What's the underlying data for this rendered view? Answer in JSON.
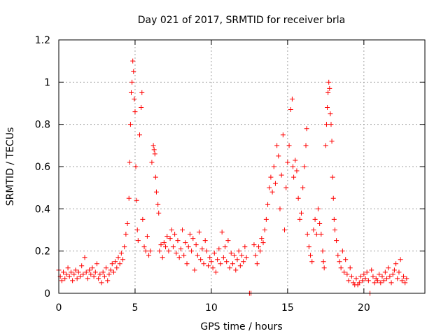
{
  "chart_data": {
    "type": "scatter",
    "title": "Day 021 of 2017, SRMTID for receiver brla",
    "xlabel": "GPS time / hours",
    "ylabel": "SRMTID / TECUs",
    "xlim": [
      0,
      24
    ],
    "ylim": [
      0,
      1.2
    ],
    "xticks": [
      0,
      5,
      10,
      15,
      20
    ],
    "yticks": [
      0,
      0.2,
      0.4,
      0.6,
      0.8,
      1,
      1.2
    ],
    "ytick_labels": [
      "0",
      "0.2",
      "0.4",
      "0.6",
      "0.8",
      "1",
      "1.2"
    ],
    "grid": true,
    "marker": "+",
    "series": [
      {
        "name": "SRMTID",
        "color": "#ff0000",
        "points": [
          [
            0.0,
            0.11
          ],
          [
            0.1,
            0.08
          ],
          [
            0.2,
            0.06
          ],
          [
            0.3,
            0.1
          ],
          [
            0.4,
            0.07
          ],
          [
            0.5,
            0.09
          ],
          [
            0.6,
            0.12
          ],
          [
            0.7,
            0.08
          ],
          [
            0.8,
            0.1
          ],
          [
            0.9,
            0.06
          ],
          [
            1.0,
            0.09
          ],
          [
            1.1,
            0.11
          ],
          [
            1.2,
            0.07
          ],
          [
            1.3,
            0.1
          ],
          [
            1.4,
            0.08
          ],
          [
            1.5,
            0.13
          ],
          [
            1.6,
            0.09
          ],
          [
            1.7,
            0.17
          ],
          [
            1.8,
            0.1
          ],
          [
            1.9,
            0.07
          ],
          [
            2.0,
            0.11
          ],
          [
            2.1,
            0.09
          ],
          [
            2.2,
            0.12
          ],
          [
            2.3,
            0.08
          ],
          [
            2.4,
            0.1
          ],
          [
            2.5,
            0.14
          ],
          [
            2.6,
            0.07
          ],
          [
            2.7,
            0.09
          ],
          [
            2.8,
            0.05
          ],
          [
            2.9,
            0.1
          ],
          [
            3.0,
            0.08
          ],
          [
            3.1,
            0.12
          ],
          [
            3.2,
            0.06
          ],
          [
            3.3,
            0.09
          ],
          [
            3.4,
            0.11
          ],
          [
            3.5,
            0.14
          ],
          [
            3.6,
            0.1
          ],
          [
            3.7,
            0.15
          ],
          [
            3.8,
            0.12
          ],
          [
            3.9,
            0.17
          ],
          [
            4.0,
            0.14
          ],
          [
            4.1,
            0.19
          ],
          [
            4.2,
            0.16
          ],
          [
            4.3,
            0.22
          ],
          [
            4.4,
            0.28
          ],
          [
            4.5,
            0.33
          ],
          [
            4.6,
            0.45
          ],
          [
            4.65,
            0.62
          ],
          [
            4.7,
            0.8
          ],
          [
            4.75,
            0.95
          ],
          [
            4.8,
            1.0
          ],
          [
            4.85,
            1.1
          ],
          [
            4.9,
            1.05
          ],
          [
            4.95,
            0.92
          ],
          [
            5.0,
            0.86
          ],
          [
            5.05,
            0.6
          ],
          [
            5.1,
            0.44
          ],
          [
            5.15,
            0.3
          ],
          [
            5.2,
            0.25
          ],
          [
            5.3,
            0.75
          ],
          [
            5.4,
            0.88
          ],
          [
            5.45,
            0.95
          ],
          [
            5.5,
            0.35
          ],
          [
            5.6,
            0.22
          ],
          [
            5.7,
            0.2
          ],
          [
            5.8,
            0.27
          ],
          [
            5.9,
            0.18
          ],
          [
            6.0,
            0.2
          ],
          [
            6.1,
            0.62
          ],
          [
            6.2,
            0.7
          ],
          [
            6.25,
            0.68
          ],
          [
            6.3,
            0.66
          ],
          [
            6.35,
            0.55
          ],
          [
            6.4,
            0.48
          ],
          [
            6.5,
            0.42
          ],
          [
            6.55,
            0.38
          ],
          [
            6.6,
            0.2
          ],
          [
            6.7,
            0.23
          ],
          [
            6.8,
            0.17
          ],
          [
            6.9,
            0.24
          ],
          [
            7.0,
            0.22
          ],
          [
            7.1,
            0.27
          ],
          [
            7.2,
            0.2
          ],
          [
            7.3,
            0.26
          ],
          [
            7.4,
            0.3
          ],
          [
            7.5,
            0.22
          ],
          [
            7.6,
            0.28
          ],
          [
            7.7,
            0.19
          ],
          [
            7.8,
            0.25
          ],
          [
            7.9,
            0.17
          ],
          [
            8.0,
            0.21
          ],
          [
            8.1,
            0.3
          ],
          [
            8.2,
            0.18
          ],
          [
            8.3,
            0.24
          ],
          [
            8.4,
            0.14
          ],
          [
            8.5,
            0.22
          ],
          [
            8.6,
            0.28
          ],
          [
            8.7,
            0.2
          ],
          [
            8.8,
            0.26
          ],
          [
            8.9,
            0.11
          ],
          [
            9.0,
            0.23
          ],
          [
            9.1,
            0.18
          ],
          [
            9.2,
            0.29
          ],
          [
            9.3,
            0.16
          ],
          [
            9.4,
            0.21
          ],
          [
            9.5,
            0.14
          ],
          [
            9.6,
            0.25
          ],
          [
            9.7,
            0.2
          ],
          [
            9.8,
            0.13
          ],
          [
            9.9,
            0.17
          ],
          [
            10.0,
            0.15
          ],
          [
            10.1,
            0.12
          ],
          [
            10.2,
            0.19
          ],
          [
            10.3,
            0.1
          ],
          [
            10.4,
            0.16
          ],
          [
            10.5,
            0.21
          ],
          [
            10.6,
            0.14
          ],
          [
            10.7,
            0.29
          ],
          [
            10.8,
            0.17
          ],
          [
            10.9,
            0.22
          ],
          [
            11.0,
            0.15
          ],
          [
            11.1,
            0.25
          ],
          [
            11.2,
            0.12
          ],
          [
            11.3,
            0.19
          ],
          [
            11.4,
            0.14
          ],
          [
            11.5,
            0.18
          ],
          [
            11.6,
            0.11
          ],
          [
            11.7,
            0.16
          ],
          [
            11.8,
            0.2
          ],
          [
            11.9,
            0.13
          ],
          [
            12.0,
            0.18
          ],
          [
            12.1,
            0.15
          ],
          [
            12.2,
            0.22
          ],
          [
            12.3,
            0.17
          ],
          [
            12.5,
            0.0
          ],
          [
            12.6,
            0.0
          ],
          [
            12.8,
            0.23
          ],
          [
            12.9,
            0.18
          ],
          [
            13.0,
            0.14
          ],
          [
            13.1,
            0.22
          ],
          [
            13.2,
            0.2
          ],
          [
            13.3,
            0.26
          ],
          [
            13.4,
            0.24
          ],
          [
            13.5,
            0.3
          ],
          [
            13.6,
            0.35
          ],
          [
            13.7,
            0.42
          ],
          [
            13.8,
            0.5
          ],
          [
            13.9,
            0.55
          ],
          [
            14.0,
            0.48
          ],
          [
            14.1,
            0.6
          ],
          [
            14.2,
            0.52
          ],
          [
            14.3,
            0.7
          ],
          [
            14.4,
            0.65
          ],
          [
            14.5,
            0.4
          ],
          [
            14.6,
            0.56
          ],
          [
            14.7,
            0.75
          ],
          [
            14.8,
            0.3
          ],
          [
            14.9,
            0.5
          ],
          [
            15.0,
            0.62
          ],
          [
            15.1,
            0.7
          ],
          [
            15.2,
            0.87
          ],
          [
            15.3,
            0.92
          ],
          [
            15.35,
            0.6
          ],
          [
            15.4,
            0.55
          ],
          [
            15.5,
            0.63
          ],
          [
            15.6,
            0.58
          ],
          [
            15.7,
            0.45
          ],
          [
            15.8,
            0.35
          ],
          [
            15.9,
            0.38
          ],
          [
            16.0,
            0.5
          ],
          [
            16.1,
            0.6
          ],
          [
            16.2,
            0.7
          ],
          [
            16.25,
            0.78
          ],
          [
            16.3,
            0.28
          ],
          [
            16.4,
            0.22
          ],
          [
            16.5,
            0.18
          ],
          [
            16.6,
            0.15
          ],
          [
            16.7,
            0.3
          ],
          [
            16.8,
            0.35
          ],
          [
            16.9,
            0.28
          ],
          [
            17.0,
            0.4
          ],
          [
            17.1,
            0.33
          ],
          [
            17.2,
            0.28
          ],
          [
            17.3,
            0.2
          ],
          [
            17.35,
            0.15
          ],
          [
            17.4,
            0.12
          ],
          [
            17.5,
            0.7
          ],
          [
            17.55,
            0.8
          ],
          [
            17.6,
            0.88
          ],
          [
            17.65,
            0.95
          ],
          [
            17.7,
            1.0
          ],
          [
            17.75,
            0.97
          ],
          [
            17.8,
            0.85
          ],
          [
            17.85,
            0.8
          ],
          [
            17.9,
            0.72
          ],
          [
            17.95,
            0.55
          ],
          [
            18.0,
            0.45
          ],
          [
            18.05,
            0.35
          ],
          [
            18.1,
            0.3
          ],
          [
            18.2,
            0.25
          ],
          [
            18.3,
            0.18
          ],
          [
            18.4,
            0.15
          ],
          [
            18.5,
            0.12
          ],
          [
            18.6,
            0.2
          ],
          [
            18.7,
            0.1
          ],
          [
            18.8,
            0.16
          ],
          [
            18.9,
            0.09
          ],
          [
            19.0,
            0.06
          ],
          [
            19.1,
            0.12
          ],
          [
            19.2,
            0.08
          ],
          [
            19.3,
            0.05
          ],
          [
            19.4,
            0.04
          ],
          [
            19.5,
            0.07
          ],
          [
            19.6,
            0.04
          ],
          [
            19.7,
            0.05
          ],
          [
            19.8,
            0.08
          ],
          [
            19.9,
            0.06
          ],
          [
            20.0,
            0.09
          ],
          [
            20.1,
            0.07
          ],
          [
            20.2,
            0.1
          ],
          [
            20.3,
            0.06
          ],
          [
            20.4,
            0.0
          ],
          [
            20.5,
            0.11
          ],
          [
            20.6,
            0.08
          ],
          [
            20.7,
            0.05
          ],
          [
            20.8,
            0.07
          ],
          [
            20.9,
            0.06
          ],
          [
            21.0,
            0.09
          ],
          [
            21.1,
            0.05
          ],
          [
            21.2,
            0.08
          ],
          [
            21.3,
            0.06
          ],
          [
            21.4,
            0.1
          ],
          [
            21.5,
            0.07
          ],
          [
            21.6,
            0.12
          ],
          [
            21.7,
            0.08
          ],
          [
            21.8,
            0.05
          ],
          [
            21.9,
            0.09
          ],
          [
            22.0,
            0.11
          ],
          [
            22.1,
            0.14
          ],
          [
            22.2,
            0.07
          ],
          [
            22.3,
            0.1
          ],
          [
            22.4,
            0.16
          ],
          [
            22.5,
            0.06
          ],
          [
            22.6,
            0.08
          ],
          [
            22.7,
            0.05
          ],
          [
            22.8,
            0.07
          ]
        ]
      }
    ]
  }
}
